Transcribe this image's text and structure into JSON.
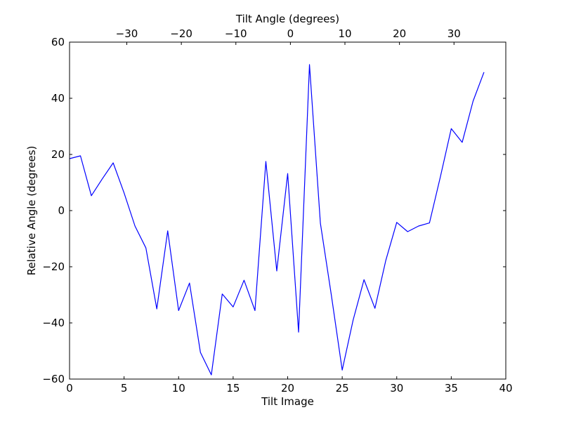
{
  "chart_data": {
    "type": "line",
    "title": "",
    "xlabel": "Tilt Image",
    "ylabel": "Relative Angle (degrees)",
    "x2label": "Tilt Angle (degrees)",
    "xlim": [
      0,
      40
    ],
    "ylim": [
      -60,
      60
    ],
    "x2lim": [
      -40.5,
      39.5
    ],
    "grid": false,
    "legend": "none",
    "line_color": "#0000ff",
    "xticks": [
      {
        "value": 0,
        "label": "0"
      },
      {
        "value": 5,
        "label": "5"
      },
      {
        "value": 10,
        "label": "10"
      },
      {
        "value": 15,
        "label": "15"
      },
      {
        "value": 20,
        "label": "20"
      },
      {
        "value": 25,
        "label": "25"
      },
      {
        "value": 30,
        "label": "30"
      },
      {
        "value": 35,
        "label": "35"
      },
      {
        "value": 40,
        "label": "40"
      }
    ],
    "yticks": [
      {
        "value": -60,
        "label": "−60"
      },
      {
        "value": -40,
        "label": "−40"
      },
      {
        "value": -20,
        "label": "−20"
      },
      {
        "value": 0,
        "label": "0"
      },
      {
        "value": 20,
        "label": "20"
      },
      {
        "value": 40,
        "label": "40"
      },
      {
        "value": 60,
        "label": "60"
      }
    ],
    "x2ticks": [
      {
        "value": -30,
        "label": "−30"
      },
      {
        "value": -20,
        "label": "−20"
      },
      {
        "value": -10,
        "label": "−10"
      },
      {
        "value": 0,
        "label": "0"
      },
      {
        "value": 10,
        "label": "10"
      },
      {
        "value": 20,
        "label": "20"
      },
      {
        "value": 30,
        "label": "30"
      }
    ],
    "series": [
      {
        "x": [
          0,
          1,
          2,
          3,
          4,
          5,
          6,
          7,
          8,
          9,
          10,
          11,
          12,
          13,
          14,
          15,
          16,
          17,
          18,
          19,
          20,
          21,
          22,
          23,
          24,
          25,
          26,
          27,
          28,
          29,
          30,
          31,
          32,
          33,
          34,
          35,
          36,
          37,
          38
        ],
        "values": [
          18.5,
          19.5,
          5.3,
          11.3,
          17.0,
          6.3,
          -5.5,
          -13.3,
          -35.0,
          -7.2,
          -35.6,
          -25.8,
          -50.5,
          -58.5,
          -29.7,
          -34.3,
          -24.8,
          -35.6,
          17.5,
          -21.5,
          13.2,
          -43.3,
          52.0,
          -4.5,
          -30.0,
          -56.8,
          -39.0,
          -24.6,
          -34.8,
          -17.7,
          -4.2,
          -7.5,
          -5.5,
          -4.4,
          12.0,
          29.2,
          24.3,
          39.0,
          49.3
        ]
      }
    ]
  }
}
